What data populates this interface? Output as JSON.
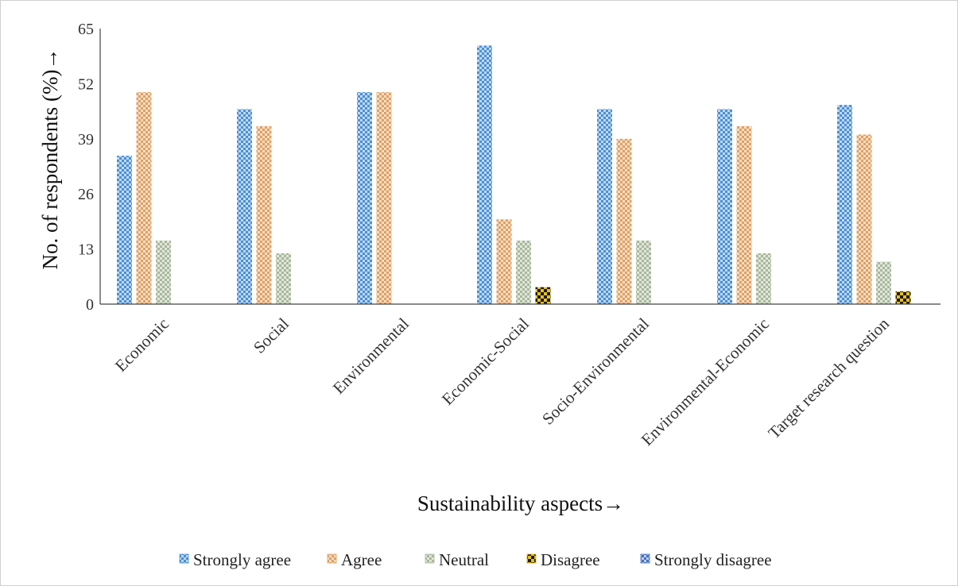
{
  "chart_data": {
    "type": "bar",
    "title": "",
    "xlabel": "Sustainability aspects→",
    "ylabel": "No. of respondents (%)→",
    "ylim": [
      0,
      65
    ],
    "yticks": [
      0,
      13,
      26,
      39,
      52,
      65
    ],
    "grid": false,
    "legend_position": "bottom",
    "categories": [
      "Economic",
      "Social",
      "Environmental",
      "Economic-Social",
      "Socio-Environmental",
      "Environmental-Economic",
      "Target research question"
    ],
    "series": [
      {
        "name": "Strongly agree",
        "color": "#4a90d6",
        "values": [
          35,
          46,
          50,
          61,
          46,
          46,
          47
        ]
      },
      {
        "name": "Agree",
        "color": "#e0a060",
        "values": [
          50,
          42,
          50,
          20,
          39,
          42,
          40
        ]
      },
      {
        "name": "Neutral",
        "color": "#a8b89a",
        "values": [
          15,
          12,
          0,
          15,
          15,
          12,
          10
        ]
      },
      {
        "name": "Disagree",
        "color": "#d4a800",
        "values": [
          0,
          0,
          0,
          4,
          0,
          0,
          3
        ]
      },
      {
        "name": "Strongly disagree",
        "color": "#4472c4",
        "values": [
          0,
          0,
          0,
          0,
          0,
          0,
          0
        ]
      }
    ]
  }
}
